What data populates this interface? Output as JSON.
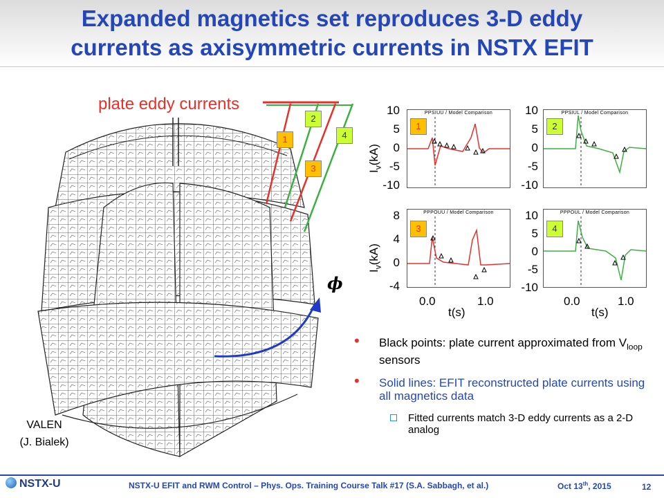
{
  "title": {
    "line1": "Expanded magnetics set reproduces 3-D eddy",
    "line2": "currents as axisymmetric currents in NSTX EFIT"
  },
  "figure": {
    "plate_label": "plate eddy currents",
    "phi_symbol": "ϕ",
    "valen_line1": "VALEN",
    "valen_line2": "(J. Bialek)",
    "badges": [
      "1",
      "2",
      "3",
      "4"
    ]
  },
  "plots": {
    "ylabel": "I",
    "ylabel_sub": "v",
    "ylabel_unit": "(kA)",
    "xlabel": "t(s)",
    "x_ticks": [
      "0.0",
      "1.0"
    ],
    "panels": [
      {
        "title": "PPSIUU / Model Comparison",
        "badge": "1",
        "color": "#e8302b",
        "y_ticks": [
          "10",
          "5",
          "0",
          "-5",
          "-10"
        ]
      },
      {
        "title": "PPSIUL / Model Comparison",
        "badge": "2",
        "color": "#3cb043",
        "y_ticks": [
          "10",
          "5",
          "0",
          "-5",
          "-10"
        ]
      },
      {
        "title": "PPPOUU / Model Comparison",
        "badge": "3",
        "color": "#e8302b",
        "y_ticks": [
          "8",
          "4",
          "0",
          "-4"
        ]
      },
      {
        "title": "PPPOUL / Model Comparison",
        "badge": "4",
        "color": "#3cb043",
        "y_ticks": [
          "10",
          "5",
          "0",
          "-5",
          "-10"
        ]
      }
    ]
  },
  "bullets": {
    "b1_text": "Black points: plate current approximated from V",
    "b1_sub": "loop",
    "b1_tail": " sensors",
    "b2_text": "Solid lines: EFIT reconstructed plate currents using all magnetics data",
    "sub1": "Fitted currents match 3-D eddy currents as a 2-D analog"
  },
  "footer": {
    "logo": "NSTX-U",
    "text": "NSTX-U EFIT and RWM Control – Phys. Ops. Training Course Talk #17 (S.A. Sabbagh, et al.)",
    "date_main": "Oct 13",
    "date_sup": "th",
    "date_year": ", 2015",
    "page": "12"
  },
  "colors": {
    "title": "#2347b8",
    "red": "#e8302b",
    "green": "#3cb043",
    "orange_badge": "#ffc000",
    "green_badge": "#ccff33"
  }
}
